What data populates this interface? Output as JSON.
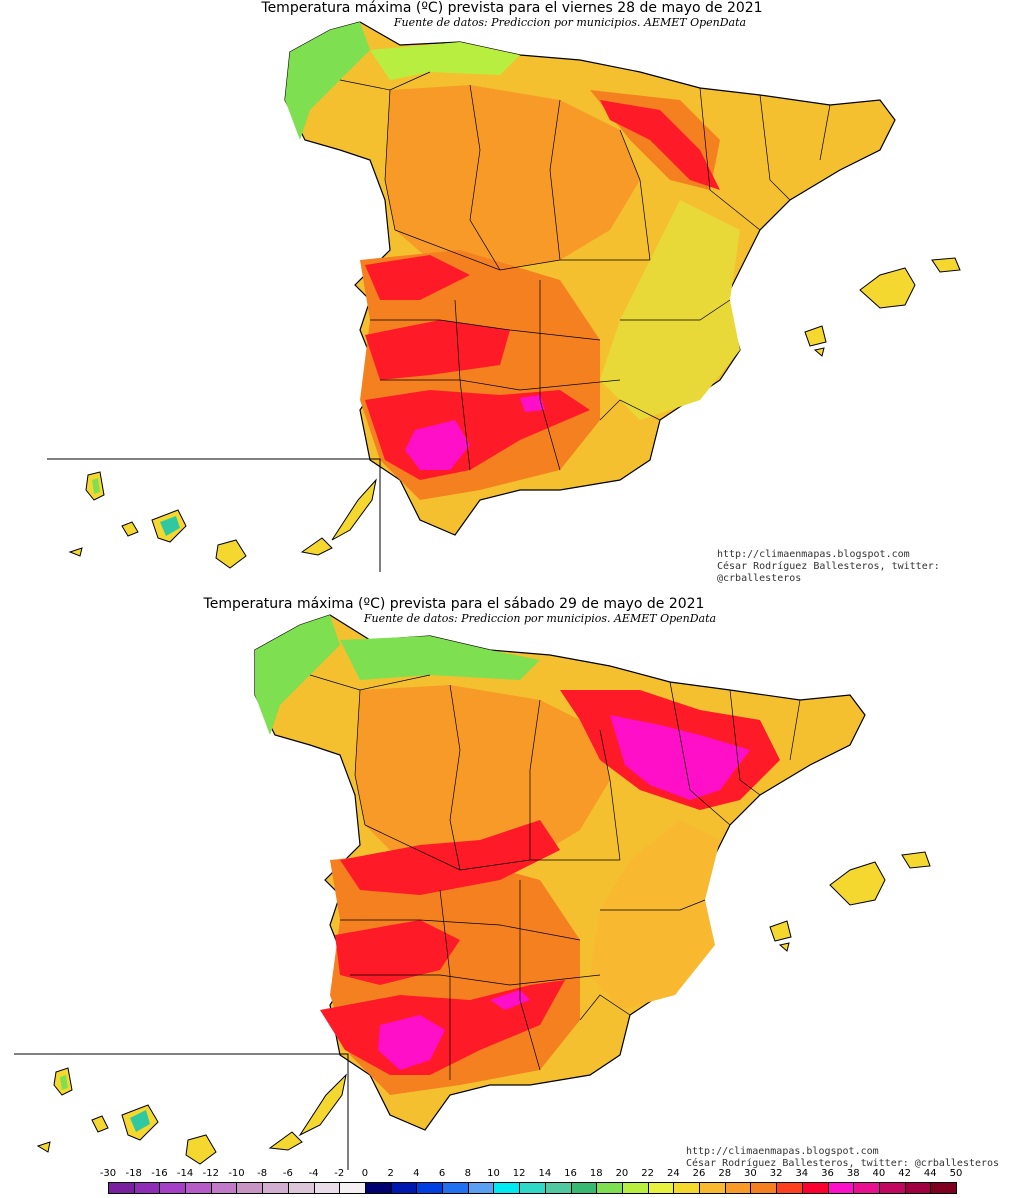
{
  "maps": [
    {
      "title": "Temperatura máxima (ºC) prevista para el viernes 28 de mayo de 2021",
      "source": "Fuente de datos: Prediccion por municipios. AEMET OpenData",
      "credit_url": "http://climaenmapas.blogspot.com",
      "credit_author": "César Rodríguez Ballesteros, twitter: @crballesteros",
      "max_temperature_c": 38,
      "region": "Peninsula, Baleares y Canarias"
    },
    {
      "title": "Temperatura máxima (ºC) prevista para el sábado 29 de mayo de 2021",
      "source": "Fuente de datos: Prediccion por municipios. AEMET OpenData",
      "credit_url": "http://climaenmapas.blogspot.com",
      "credit_author": "César Rodríguez Ballesteros, twitter: @crballesteros",
      "max_temperature_c": 38,
      "region": "Peninsula, Baleares y Canarias"
    }
  ],
  "legend": {
    "labels": [
      "-30",
      "-18",
      "-16",
      "-14",
      "-12",
      "-10",
      "-8",
      "-6",
      "-4",
      "-2",
      "0",
      "2",
      "4",
      "6",
      "8",
      "10",
      "12",
      "14",
      "16",
      "18",
      "20",
      "22",
      "24",
      "26",
      "28",
      "30",
      "32",
      "34",
      "36",
      "38",
      "40",
      "42",
      "44",
      "50"
    ],
    "colors": [
      "#7a1fa0",
      "#8e2cb8",
      "#a53fc8",
      "#b55cc8",
      "#c07ac8",
      "#c894c4",
      "#d2aed0",
      "#ddc6da",
      "#e8dde8",
      "#f4f0f4",
      "#000070",
      "#0018b0",
      "#0040e0",
      "#2070f0",
      "#5aa0f0",
      "#00e8f0",
      "#30d8c8",
      "#50c8a0",
      "#38b870",
      "#7ee050",
      "#b8ee40",
      "#e8f040",
      "#f4d830",
      "#f8b830",
      "#f89a28",
      "#f58020",
      "#ff4020",
      "#ff0030",
      "#ff10c8",
      "#e81090",
      "#c00860",
      "#a00040",
      "#800020"
    ]
  },
  "colors": {
    "hot_extreme": "#ff10c8",
    "very_hot": "#ff1a28",
    "hot": "#f58a20",
    "warm": "#f8b830",
    "mild": "#f4d830",
    "cool": "#7ee050",
    "cold": "#30c8a0"
  }
}
